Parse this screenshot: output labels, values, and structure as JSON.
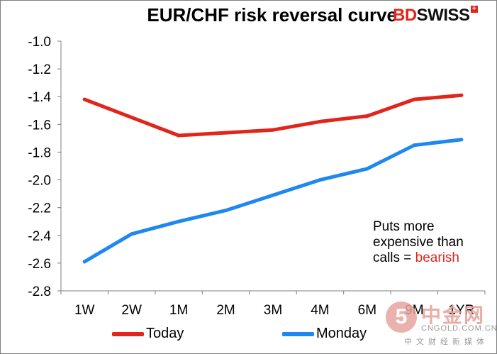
{
  "header": {
    "title": "EUR/CHF risk reversal curve",
    "logo_bd": "BD",
    "logo_swiss": "SWISS",
    "logo_plus": "+"
  },
  "annotation": {
    "line1": "Puts more",
    "line2": "expensive than",
    "line3_prefix": "calls = ",
    "line3_highlight": "bearish"
  },
  "watermark": {
    "mark": "5",
    "cn": "中金网",
    "en": "CNGOLD.COM.CN",
    "sub": "中文财经新媒体"
  },
  "colors": {
    "today": "#e1251b",
    "monday": "#1e88f0",
    "axis": "#7f7f7f",
    "accent": "#e1251b"
  },
  "chart_data": {
    "type": "line",
    "title": "EUR/CHF risk reversal curve",
    "xlabel": "",
    "ylabel": "",
    "categories": [
      "1W",
      "2W",
      "1M",
      "2M",
      "3M",
      "4M",
      "6M",
      "9M",
      "1YR"
    ],
    "ylim": [
      -2.8,
      -1.0
    ],
    "ystep": 0.2,
    "yticks": [
      "-1.0",
      "-1.2",
      "-1.4",
      "-1.6",
      "-1.8",
      "-2.0",
      "-2.2",
      "-2.4",
      "-2.6",
      "-2.8"
    ],
    "grid": false,
    "legend": "bottom",
    "series": [
      {
        "name": "Today",
        "color": "#e1251b",
        "values": [
          -1.42,
          -1.55,
          -1.68,
          -1.66,
          -1.64,
          -1.58,
          -1.54,
          -1.42,
          -1.39
        ]
      },
      {
        "name": "Monday",
        "color": "#1e88f0",
        "values": [
          -2.59,
          -2.39,
          -2.3,
          -2.22,
          -2.11,
          -2.0,
          -1.92,
          -1.75,
          -1.71
        ]
      }
    ]
  }
}
